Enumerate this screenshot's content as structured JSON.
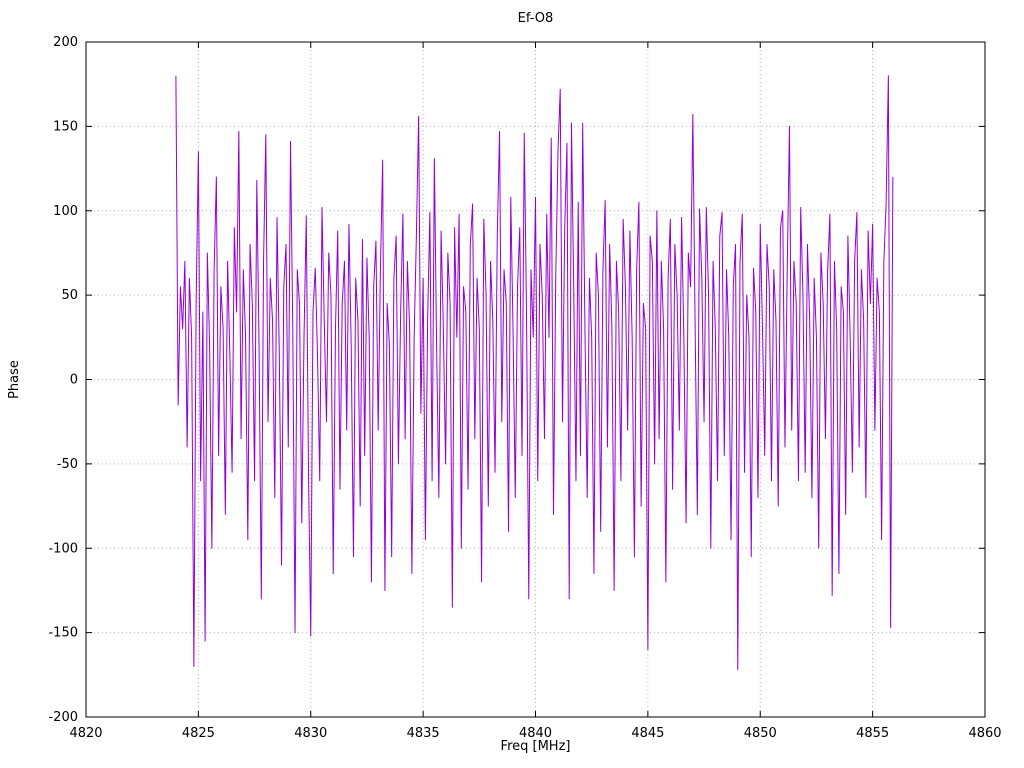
{
  "chart_data": {
    "type": "line",
    "title": "Ef-O8",
    "xlabel": "Freq [MHz]",
    "ylabel": "Phase",
    "xlim": [
      4820,
      4860
    ],
    "ylim": [
      -200,
      200
    ],
    "xticks": [
      4820,
      4825,
      4830,
      4835,
      4840,
      4845,
      4850,
      4855,
      4860
    ],
    "yticks": [
      -200,
      -150,
      -100,
      -50,
      0,
      50,
      100,
      150,
      200
    ],
    "grid": true,
    "legend": "none",
    "line_color": "#9400d3",
    "border_color": "#000000",
    "grid_color": "#b0b0b0",
    "x_start": 4824.0,
    "x_step": 0.1,
    "values": [
      180,
      -15,
      55,
      30,
      70,
      -40,
      60,
      25,
      -170,
      45,
      135,
      -60,
      40,
      -155,
      75,
      20,
      -100,
      65,
      120,
      -45,
      55,
      30,
      -80,
      70,
      15,
      -55,
      90,
      40,
      147,
      -35,
      65,
      25,
      -95,
      80,
      45,
      -60,
      118,
      20,
      -130,
      70,
      145,
      -25,
      60,
      35,
      -70,
      96,
      15,
      -110,
      55,
      80,
      -40,
      141,
      30,
      -150,
      65,
      45,
      -85,
      25,
      97,
      -55,
      -152,
      40,
      66,
      15,
      -60,
      102,
      35,
      -25,
      75,
      50,
      -115,
      30,
      88,
      -65,
      45,
      70,
      -30,
      92,
      20,
      -105,
      60,
      35,
      -75,
      83,
      -45,
      72,
      25,
      -120,
      55,
      82,
      -30,
      65,
      130,
      -125,
      45,
      20,
      -105,
      60,
      85,
      -50,
      40,
      98,
      -35,
      70,
      30,
      -115,
      25,
      85,
      156,
      -20,
      60,
      -95,
      35,
      99,
      -60,
      131,
      20,
      -70,
      88,
      30,
      -50,
      75,
      45,
      -135,
      90,
      25,
      98,
      -100,
      55,
      40,
      -65,
      80,
      104,
      -35,
      60,
      30,
      -120,
      95,
      50,
      -75,
      70,
      35,
      -55,
      86,
      147,
      -25,
      65,
      45,
      -90,
      108,
      30,
      -70,
      55,
      90,
      -45,
      146,
      40,
      -130,
      65,
      25,
      108,
      -60,
      80,
      50,
      -35,
      98,
      25,
      143,
      -80,
      60,
      135,
      172,
      -25,
      90,
      140,
      -130,
      152,
      55,
      -60,
      105,
      -45,
      152,
      30,
      -70,
      60,
      25,
      -115,
      75,
      50,
      -90,
      65,
      106,
      -40,
      80,
      30,
      -125,
      70,
      40,
      -60,
      95,
      55,
      -30,
      88,
      25,
      -105,
      65,
      105,
      -75,
      45,
      30,
      -160,
      85,
      70,
      -50,
      100,
      -35,
      70,
      30,
      -120,
      60,
      95,
      -65,
      80,
      50,
      -30,
      96,
      25,
      -85,
      75,
      55,
      157,
      35,
      -80,
      101,
      60,
      -25,
      102,
      50,
      -100,
      70,
      30,
      -60,
      85,
      99,
      -45,
      65,
      25,
      -95,
      55,
      80,
      -172,
      70,
      98,
      -55,
      50,
      25,
      -105,
      66,
      40,
      -70,
      92,
      30,
      -45,
      80,
      55,
      -60,
      65,
      35,
      -75,
      90,
      100,
      -40,
      65,
      150,
      -30,
      70,
      45,
      -60,
      102,
      50,
      -55,
      80,
      35,
      -70,
      60,
      25,
      -100,
      75,
      45,
      -35,
      65,
      98,
      -128,
      70,
      30,
      -115,
      55,
      40,
      -80,
      85,
      25,
      -55,
      70,
      99,
      -40,
      65,
      35,
      -70,
      88,
      45,
      92,
      -30,
      60,
      40,
      -95,
      70,
      104,
      180,
      -147,
      120
    ]
  }
}
